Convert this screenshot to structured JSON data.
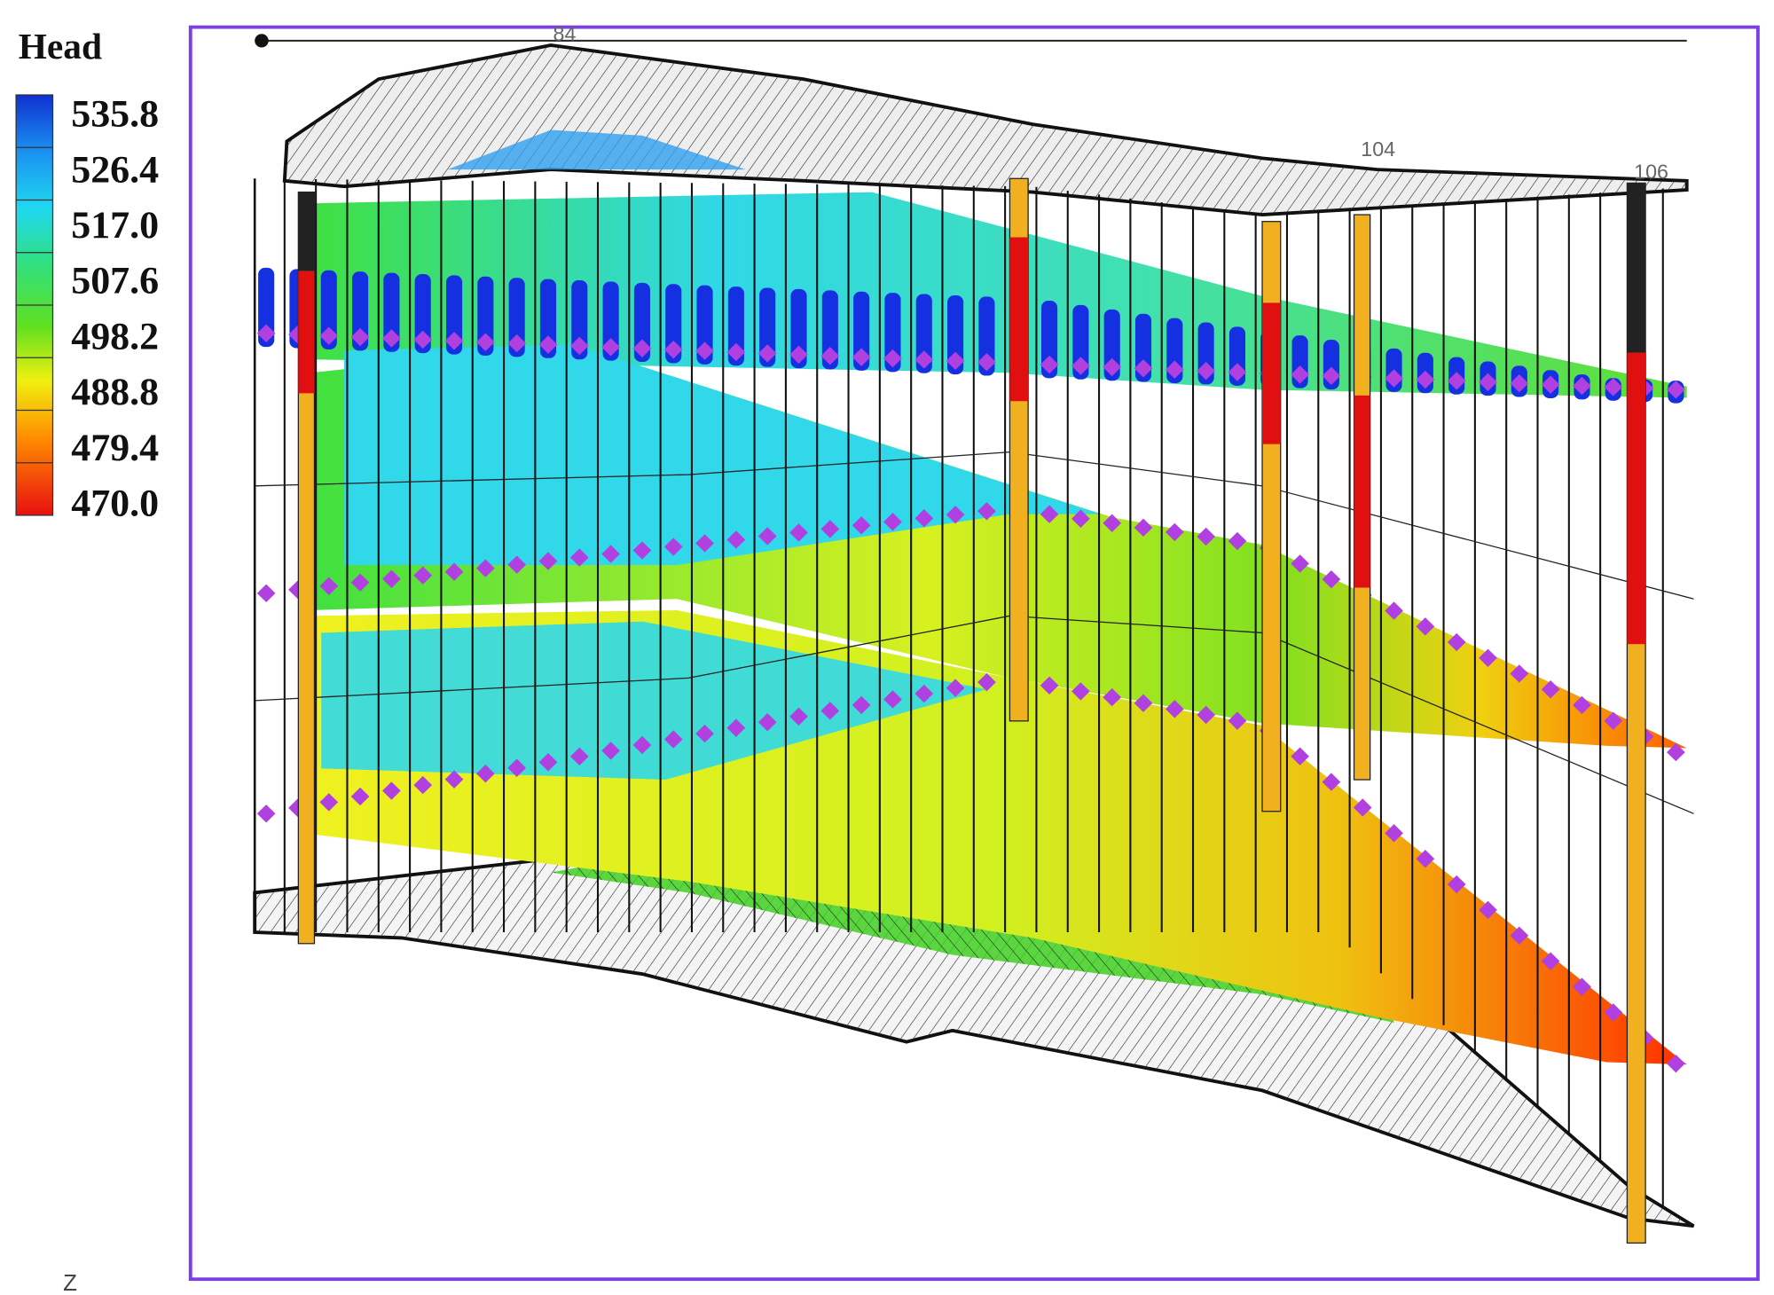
{
  "legend": {
    "title": "Head",
    "labels": [
      "535.8",
      "526.4",
      "517.0",
      "507.6",
      "498.2",
      "488.8",
      "479.4",
      "470.0"
    ]
  },
  "well_labels": [
    "84",
    "104",
    "106"
  ],
  "axis_label": "Z"
}
